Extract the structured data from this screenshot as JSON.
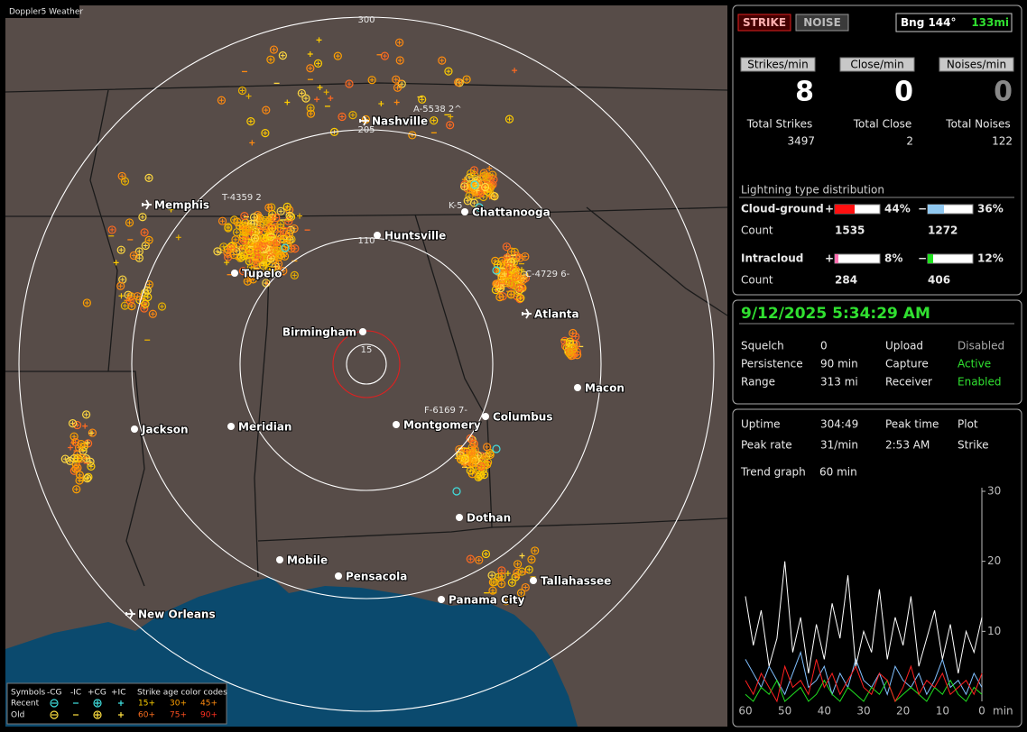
{
  "app": {
    "title": "Doppler5 Weather"
  },
  "map": {
    "range_labels": [
      "300",
      "205",
      "110",
      "15"
    ],
    "cities": [
      "Nashville",
      "Memphis",
      "Chattanooga",
      "Huntsville",
      "Tupelo",
      "Birmingham",
      "Atlanta",
      "Macon",
      "Jackson",
      "Meridian",
      "Montgomery",
      "Columbus",
      "Dothan",
      "Mobile",
      "Pensacola",
      "Tallahassee",
      "Panama City",
      "New Orleans"
    ],
    "storm_labels": [
      "A-5538 2^",
      "T-4359 2",
      "K-5",
      "C-4729 6-",
      "F-6169 7-"
    ]
  },
  "legend": {
    "header": [
      "Symbols",
      "-CG",
      "-IC",
      "+CG",
      "+IC",
      "Strike age color codes"
    ],
    "rows": [
      {
        "label": "Recent",
        "ages": [
          "15+",
          "30+",
          "45+"
        ]
      },
      {
        "label": "Old",
        "ages": [
          "60+",
          "75+",
          "90+"
        ]
      }
    ]
  },
  "panel": {
    "modes": [
      "STRIKE",
      "NOISE"
    ],
    "bearing": "Bng 144°",
    "distance": "133mi",
    "rates": [
      {
        "label": "Strikes/min",
        "value": 8
      },
      {
        "label": "Close/min",
        "value": 0
      },
      {
        "label": "Noises/min",
        "value": 0
      }
    ],
    "totals": [
      {
        "label": "Total Strikes",
        "value": 3497
      },
      {
        "label": "Total Close",
        "value": 2
      },
      {
        "label": "Total Noises",
        "value": 122
      }
    ],
    "distribution": {
      "title": "Lightning type distribution",
      "count_label": "Count",
      "rows": [
        {
          "label": "Cloud-ground",
          "positive": {
            "sign": "+",
            "percent": 44,
            "percent_label": "44%",
            "count": 1535
          },
          "negative": {
            "sign": "−",
            "percent": 36,
            "percent_label": "36%",
            "count": 1272
          }
        },
        {
          "label": "Intracloud",
          "positive": {
            "sign": "+",
            "percent": 8,
            "percent_label": "8%",
            "count": 284
          },
          "negative": {
            "sign": "−",
            "percent": 12,
            "percent_label": "12%",
            "count": 406
          }
        }
      ]
    }
  },
  "status": {
    "datetime": "9/12/2025 5:34:29 AM",
    "settings": [
      [
        "Squelch",
        "0",
        "Upload",
        "Disabled"
      ],
      [
        "Persistence",
        "90 min",
        "Capture",
        "Active"
      ],
      [
        "Range",
        "313 mi",
        "Receiver",
        "Enabled"
      ]
    ]
  },
  "stats": {
    "rows": [
      [
        "Uptime",
        "304:49",
        "Peak time",
        "Plot"
      ],
      [
        "Peak rate",
        "31/min",
        "2:53 AM",
        "Strike"
      ]
    ],
    "trend_label": "Trend graph",
    "trend_window": "60 min"
  },
  "chart_data": {
    "type": "line",
    "x": [
      60,
      58,
      56,
      54,
      52,
      50,
      48,
      46,
      44,
      42,
      40,
      38,
      36,
      34,
      32,
      30,
      28,
      26,
      24,
      22,
      20,
      18,
      16,
      14,
      12,
      10,
      8,
      6,
      4,
      2,
      0
    ],
    "xlim": [
      60,
      0
    ],
    "xticks": [
      60,
      50,
      40,
      30,
      20,
      10,
      0
    ],
    "x_label": "min",
    "ylim": [
      0,
      30
    ],
    "yticks": [
      10,
      20,
      30
    ],
    "series": [
      {
        "color": "#ffffff",
        "values": [
          15,
          8,
          13,
          5,
          9,
          20,
          7,
          12,
          4,
          11,
          6,
          14,
          9,
          18,
          5,
          10,
          7,
          16,
          6,
          12,
          8,
          15,
          5,
          9,
          13,
          6,
          11,
          4,
          10,
          7,
          12
        ]
      },
      {
        "color": "#ff2020",
        "values": [
          3,
          1,
          4,
          2,
          0,
          5,
          2,
          3,
          1,
          6,
          2,
          4,
          1,
          3,
          5,
          2,
          1,
          4,
          3,
          0,
          2,
          5,
          1,
          3,
          2,
          4,
          1,
          2,
          3,
          1,
          4
        ]
      },
      {
        "color": "#20e020",
        "values": [
          1,
          0,
          2,
          1,
          3,
          0,
          1,
          2,
          0,
          1,
          3,
          1,
          0,
          2,
          1,
          0,
          2,
          1,
          3,
          0,
          1,
          2,
          1,
          0,
          2,
          1,
          3,
          1,
          0,
          2,
          1
        ]
      },
      {
        "color": "#80c0ff",
        "values": [
          6,
          4,
          2,
          5,
          3,
          1,
          4,
          7,
          2,
          3,
          5,
          1,
          4,
          2,
          6,
          3,
          2,
          4,
          1,
          5,
          3,
          2,
          4,
          1,
          3,
          6,
          2,
          3,
          1,
          4,
          2
        ]
      }
    ]
  }
}
